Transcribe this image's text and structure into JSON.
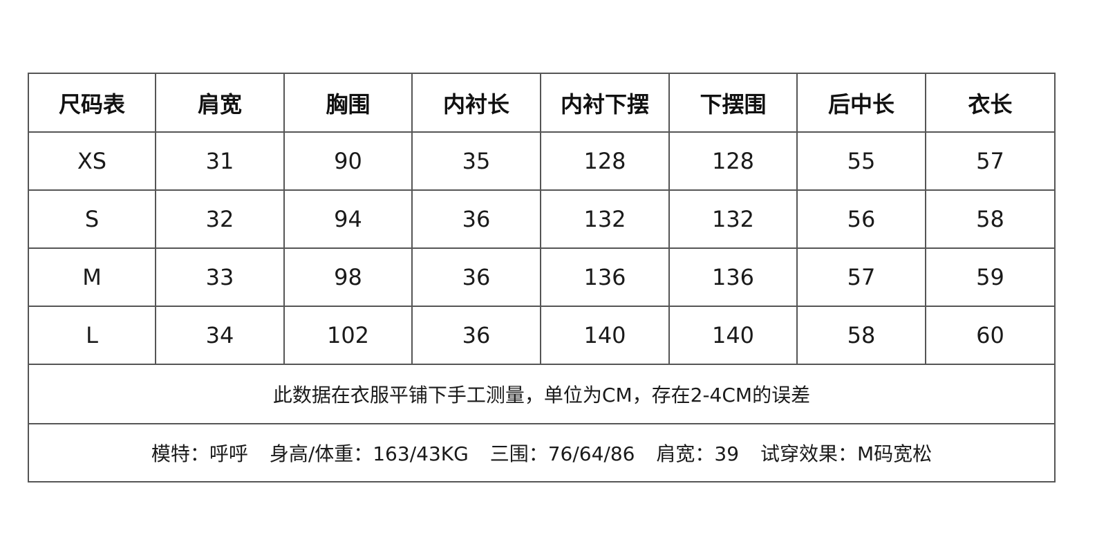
{
  "headers": [
    "尺码表",
    "肩宽",
    "胸围",
    "内衬长",
    "内衬下摆",
    "下摆围",
    "后中长",
    "衣长"
  ],
  "rows": [
    [
      "XS",
      "31",
      "90",
      "35",
      "128",
      "128",
      "55",
      "57"
    ],
    [
      "S",
      "32",
      "94",
      "36",
      "132",
      "132",
      "56",
      "58"
    ],
    [
      "M",
      "33",
      "98",
      "36",
      "136",
      "136",
      "57",
      "59"
    ],
    [
      "L",
      "34",
      "102",
      "36",
      "140",
      "140",
      "58",
      "60"
    ]
  ],
  "note": "此数据在衣服平铺下手工测量，单位为CM，存在2-4CM的误差",
  "model": {
    "name": "模特：呼呼",
    "height_weight": "身高/体重：163/43KG",
    "measurements": "三围：76/64/86",
    "shoulder": "肩宽：39",
    "fit": "试穿效果：M码宽松"
  }
}
